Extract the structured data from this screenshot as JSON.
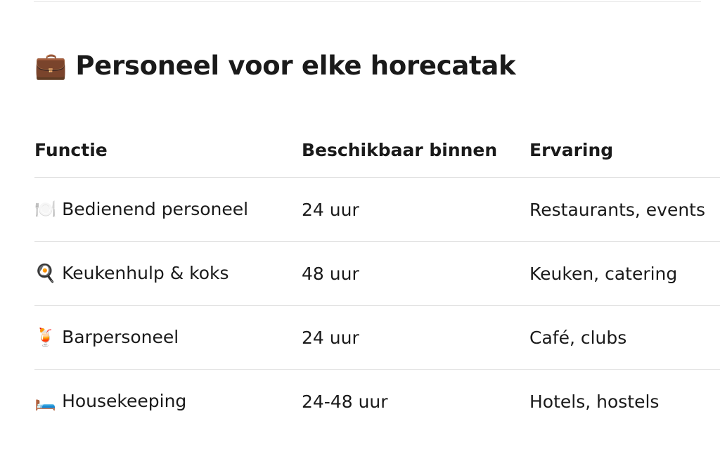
{
  "heading": {
    "title": "💼 Personeel voor elke horecatak"
  },
  "table": {
    "columns": [
      "Functie",
      "Beschikbaar binnen",
      "Ervaring"
    ],
    "rows": [
      [
        "🍽️ Bedienend personeel",
        "24 uur",
        "Restaurants, events"
      ],
      [
        "🍳 Keukenhulp & koks",
        "48 uur",
        "Keuken, catering"
      ],
      [
        "🍹 Barpersoneel",
        "24 uur",
        "Café, clubs"
      ],
      [
        "🛏️ Housekeeping",
        "24-48 uur",
        "Hotels, hostels"
      ]
    ]
  }
}
